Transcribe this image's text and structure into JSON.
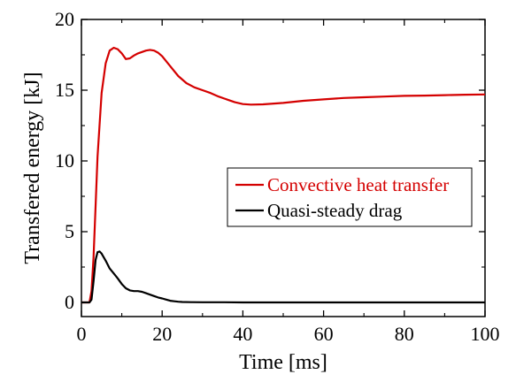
{
  "chart_data": {
    "type": "line",
    "xlabel": "Time [ms]",
    "ylabel": "Transfered energy [kJ]",
    "xlim": [
      0,
      100
    ],
    "ylim": [
      -1,
      20
    ],
    "xticks": [
      0,
      20,
      40,
      60,
      80,
      100
    ],
    "yticks": [
      0,
      5,
      10,
      15,
      20
    ],
    "xtick_labels": [
      "0",
      "20",
      "40",
      "60",
      "80",
      "100"
    ],
    "ytick_labels": [
      "0",
      "5",
      "10",
      "15",
      "20"
    ],
    "grid": false,
    "legend_position": "center-right",
    "series": [
      {
        "name": "Convective heat transfer",
        "color": "#d40000",
        "x": [
          0,
          2,
          2.5,
          3,
          3.5,
          4,
          5,
          6,
          7,
          8,
          9,
          10,
          11,
          12,
          13,
          14,
          15,
          16,
          17,
          18,
          19,
          20,
          22,
          24,
          26,
          28,
          30,
          32,
          34,
          36,
          38,
          40,
          42,
          45,
          50,
          55,
          60,
          65,
          70,
          75,
          80,
          85,
          90,
          95,
          100
        ],
        "y": [
          0,
          0,
          0.8,
          3.2,
          6.8,
          10.3,
          14.8,
          16.9,
          17.8,
          18.0,
          17.9,
          17.6,
          17.2,
          17.25,
          17.45,
          17.6,
          17.7,
          17.8,
          17.85,
          17.8,
          17.65,
          17.4,
          16.7,
          16.0,
          15.5,
          15.2,
          15.0,
          14.8,
          14.55,
          14.35,
          14.15,
          14.02,
          13.98,
          14.0,
          14.1,
          14.25,
          14.35,
          14.45,
          14.5,
          14.55,
          14.6,
          14.62,
          14.65,
          14.68,
          14.7
        ]
      },
      {
        "name": "Quasi-steady drag",
        "color": "#000000",
        "x": [
          0,
          2,
          2.5,
          3,
          3.5,
          4,
          4.5,
          5,
          6,
          7,
          8,
          9,
          10,
          11,
          12,
          13,
          14,
          15,
          16,
          17,
          18,
          19,
          20,
          21,
          22,
          23,
          24,
          25,
          27,
          30,
          35,
          40,
          50,
          60,
          70,
          80,
          90,
          100
        ],
        "y": [
          0,
          0,
          0.2,
          1.5,
          3.0,
          3.55,
          3.6,
          3.45,
          2.95,
          2.4,
          2.05,
          1.7,
          1.3,
          1.0,
          0.85,
          0.8,
          0.8,
          0.75,
          0.65,
          0.55,
          0.45,
          0.35,
          0.28,
          0.2,
          0.12,
          0.08,
          0.05,
          0.03,
          0.02,
          0.01,
          0.01,
          0.0,
          0.0,
          0.0,
          0.0,
          0.0,
          0.0,
          0.0
        ]
      }
    ]
  }
}
